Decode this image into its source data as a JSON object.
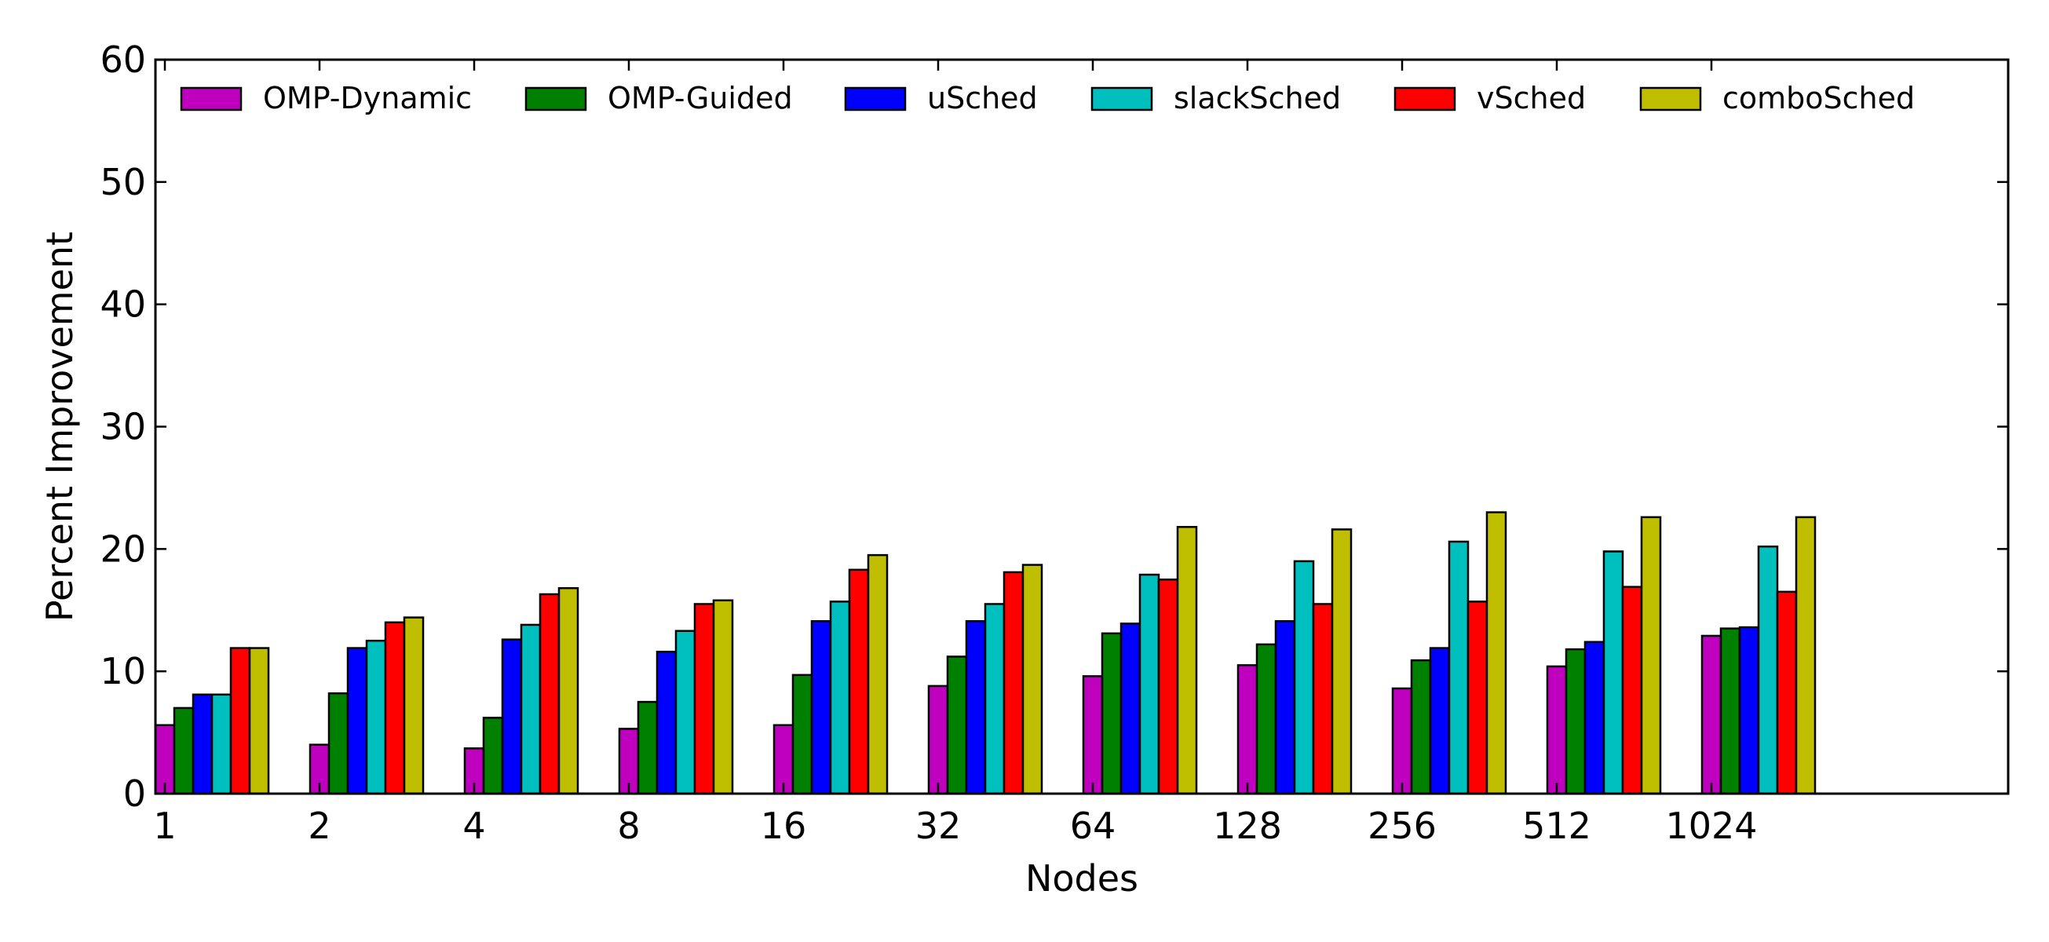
{
  "chart_data": {
    "type": "bar",
    "title": "",
    "xlabel": "Nodes",
    "ylabel": "Percent Improvement",
    "ylim": [
      0,
      60
    ],
    "yticks": [
      "0",
      "10",
      "20",
      "30",
      "40",
      "50",
      "60"
    ],
    "categories": [
      "1",
      "2",
      "4",
      "8",
      "16",
      "32",
      "64",
      "128",
      "256",
      "512",
      "1024"
    ],
    "legend_position": "top",
    "grid": false,
    "series": [
      {
        "name": "OMP-Dynamic",
        "color": "#bf00bf",
        "values": [
          5.6,
          4.0,
          3.7,
          5.3,
          5.6,
          8.8,
          9.6,
          10.5,
          8.6,
          10.4,
          12.9
        ]
      },
      {
        "name": "OMP-Guided",
        "color": "#008000",
        "values": [
          7.0,
          8.2,
          6.2,
          7.5,
          9.7,
          11.2,
          13.1,
          12.2,
          10.9,
          11.8,
          13.5
        ]
      },
      {
        "name": "uSched",
        "color": "#0000ff",
        "values": [
          8.1,
          11.9,
          12.6,
          11.6,
          14.1,
          14.1,
          13.9,
          14.1,
          11.9,
          12.4,
          13.6
        ]
      },
      {
        "name": "slackSched",
        "color": "#00bfbf",
        "values": [
          8.1,
          12.5,
          13.8,
          13.3,
          15.7,
          15.5,
          17.9,
          19.0,
          20.6,
          19.8,
          20.2
        ]
      },
      {
        "name": "vSched",
        "color": "#ff0000",
        "values": [
          11.9,
          14.0,
          16.3,
          15.5,
          18.3,
          18.1,
          17.5,
          15.5,
          15.7,
          16.9,
          16.5
        ]
      },
      {
        "name": "comboSched",
        "color": "#bfbf00",
        "values": [
          11.9,
          14.4,
          16.8,
          15.8,
          19.5,
          18.7,
          21.8,
          21.6,
          23.0,
          22.6,
          22.6
        ]
      }
    ]
  }
}
